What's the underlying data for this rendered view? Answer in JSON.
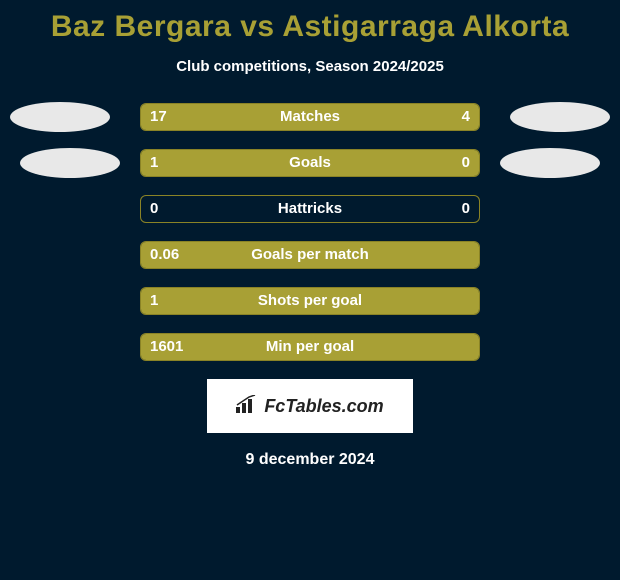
{
  "title": "Baz Bergara vs Astigarraga Alkorta",
  "subtitle": "Club competitions, Season 2024/2025",
  "colors": {
    "background": "#001a2e",
    "accent": "#a8a035",
    "bar_border": "#8a8326",
    "text": "#ffffff",
    "avatar": "#e8e8e8",
    "logo_bg": "#ffffff",
    "logo_text": "#222222"
  },
  "rows": [
    {
      "label": "Matches",
      "left_val": "17",
      "right_val": "4",
      "left_pct": 78,
      "right_pct": 22,
      "show_left_avatar": true,
      "show_right_avatar": true,
      "avatar_style": 1
    },
    {
      "label": "Goals",
      "left_val": "1",
      "right_val": "0",
      "left_pct": 100,
      "right_pct": 0,
      "show_left_avatar": true,
      "show_right_avatar": true,
      "avatar_style": 2
    },
    {
      "label": "Hattricks",
      "left_val": "0",
      "right_val": "0",
      "left_pct": 0,
      "right_pct": 0,
      "show_left_avatar": false,
      "show_right_avatar": false
    },
    {
      "label": "Goals per match",
      "left_val": "0.06",
      "right_val": "",
      "left_pct": 100,
      "right_pct": 0,
      "show_left_avatar": false,
      "show_right_avatar": false
    },
    {
      "label": "Shots per goal",
      "left_val": "1",
      "right_val": "",
      "left_pct": 100,
      "right_pct": 0,
      "show_left_avatar": false,
      "show_right_avatar": false
    },
    {
      "label": "Min per goal",
      "left_val": "1601",
      "right_val": "",
      "left_pct": 100,
      "right_pct": 0,
      "show_left_avatar": false,
      "show_right_avatar": false
    }
  ],
  "logo_text": "FcTables.com",
  "date": "9 december 2024"
}
